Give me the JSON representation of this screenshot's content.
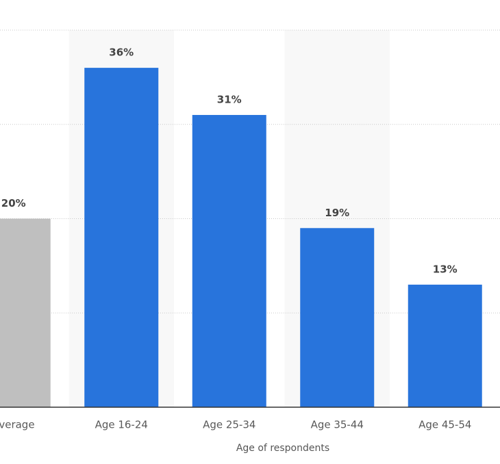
{
  "chart_data": {
    "type": "bar",
    "x_label": "Age of respondents",
    "categories": [
      "Average",
      "Age 16-24",
      "Age 25-34",
      "Age 35-44",
      "Age 45-54"
    ],
    "values": [
      20,
      36,
      31,
      19,
      13
    ],
    "value_labels": [
      "20%",
      "36%",
      "31%",
      "19%",
      "13%"
    ],
    "colors": [
      "#bfbfbf",
      "#2874dc",
      "#2874dc",
      "#2874dc",
      "#2874dc"
    ],
    "ylim": [
      0,
      40
    ],
    "yticks": [
      0,
      10,
      20,
      30,
      40
    ],
    "grid": true
  }
}
